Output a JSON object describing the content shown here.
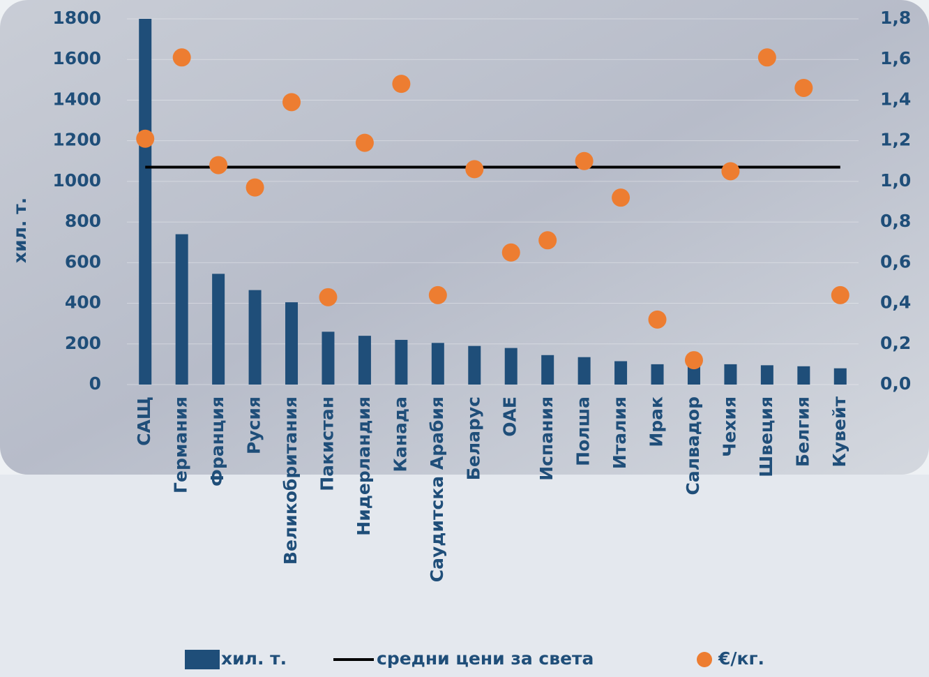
{
  "chart_data": {
    "type": "combo",
    "y_label": "хил. т.",
    "categories": [
      "САЩ",
      "Германия",
      "Франция",
      "Русия",
      "Великобритания",
      "Пакистан",
      "Нидерландия",
      "Канада",
      "Саудитска Арабия",
      "Беларус",
      "ОАЕ",
      "Испания",
      "Полша",
      "Италия",
      "Ирак",
      "Салвадор",
      "Чехия",
      "Швеция",
      "Белгия",
      "Кувейт"
    ],
    "series": [
      {
        "name": "хил. т.",
        "type": "bar",
        "color": "#1f4e79",
        "values": [
          1800,
          740,
          545,
          465,
          405,
          260,
          240,
          220,
          205,
          190,
          180,
          145,
          135,
          115,
          100,
          95,
          100,
          95,
          90,
          80
        ]
      },
      {
        "name": "средни цени за света",
        "type": "line",
        "axis": "y2",
        "color": "#000000",
        "values": [
          1.07,
          1.07,
          1.07,
          1.07,
          1.07,
          1.07,
          1.07,
          1.07,
          1.07,
          1.07,
          1.07,
          1.07,
          1.07,
          1.07,
          1.07,
          1.07,
          1.07,
          1.07,
          1.07,
          1.07
        ]
      },
      {
        "name": "€/кг.",
        "type": "scatter",
        "axis": "y2",
        "color": "#ed7d31",
        "values": [
          1.21,
          1.61,
          1.08,
          0.97,
          1.39,
          0.43,
          1.19,
          1.48,
          0.44,
          1.06,
          0.65,
          0.71,
          1.1,
          0.92,
          0.32,
          0.12,
          1.05,
          1.61,
          1.46,
          0.44
        ]
      }
    ],
    "ylim": [
      0,
      1800
    ],
    "yticks": [
      0,
      200,
      400,
      600,
      800,
      1000,
      1200,
      1400,
      1600,
      1800
    ],
    "y2lim": [
      0,
      1.8
    ],
    "y2ticks": [
      {
        "value": 0,
        "label": "0,0"
      },
      {
        "value": 0.2,
        "label": "0,2"
      },
      {
        "value": 0.4,
        "label": "0,4"
      },
      {
        "value": 0.6,
        "label": "0,6"
      },
      {
        "value": 0.8,
        "label": "0,8"
      },
      {
        "value": 1.0,
        "label": "1,0"
      },
      {
        "value": 1.2,
        "label": "1,2"
      },
      {
        "value": 1.4,
        "label": "1,4"
      },
      {
        "value": 1.6,
        "label": "1,6"
      },
      {
        "value": 1.8,
        "label": "1,8"
      }
    ],
    "grid": true
  }
}
